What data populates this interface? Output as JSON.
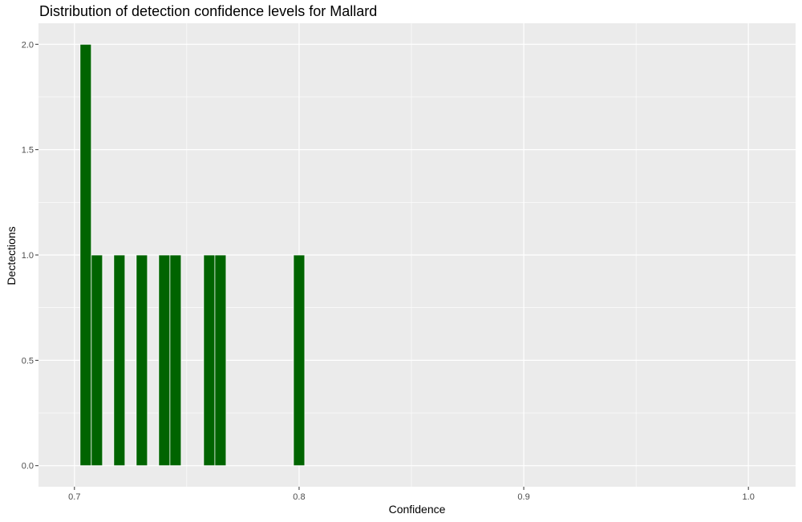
{
  "colors": {
    "bar": "#006400",
    "panel": "#ebebeb",
    "grid": "#ffffff"
  },
  "chart_data": {
    "type": "bar",
    "title": "Distribution of detection confidence levels for Mallard",
    "xlabel": "Confidence",
    "ylabel": "Dectections",
    "xlim": [
      0.684,
      1.021
    ],
    "ylim": [
      -0.1,
      2.1
    ],
    "x_ticks": [
      0.7,
      0.8,
      0.9,
      1.0
    ],
    "x_tick_labels": [
      "0.7",
      "0.8",
      "0.9",
      "1.0"
    ],
    "y_ticks": [
      0.0,
      0.5,
      1.0,
      1.5,
      2.0
    ],
    "y_tick_labels": [
      "0.0",
      "0.5",
      "1.0",
      "1.5",
      "2.0"
    ],
    "bin_width": 0.005,
    "x": [
      0.705,
      0.71,
      0.72,
      0.73,
      0.74,
      0.745,
      0.76,
      0.765,
      0.8
    ],
    "values": [
      2,
      1,
      1,
      1,
      1,
      1,
      1,
      1,
      1
    ],
    "grid": true,
    "legend": "none"
  }
}
